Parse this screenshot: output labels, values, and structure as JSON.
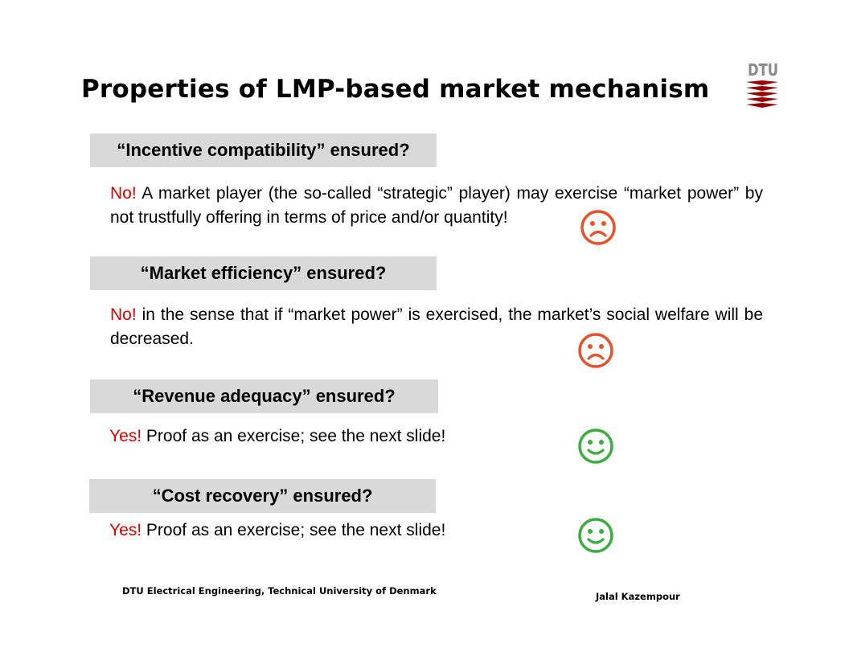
{
  "slide": {
    "title": "Properties of LMP-based market mechanism"
  },
  "logo": {
    "text": "DTU",
    "text_color": "#8a8a8a",
    "mark_color": "#990000"
  },
  "sections": [
    {
      "question": "“Incentive compatibility” ensured?",
      "verdict": "No!",
      "answer": " A market player (the so-called “strategic” player) may exercise “market power” by not trustfully offering in terms of price and/or quantity!",
      "face": "sad-face-icon"
    },
    {
      "question": "“Market efficiency” ensured?",
      "verdict": "No!",
      "answer": " in the sense that if “market power” is exercised, the market’s social welfare will be decreased.",
      "face": "sad-face-icon"
    },
    {
      "question": "“Revenue adequacy” ensured?",
      "verdict": "Yes!",
      "answer": " Proof as an exercise; see the next slide!",
      "face": "happy-face-icon"
    },
    {
      "question": "“Cost recovery” ensured?",
      "verdict": "Yes!",
      "answer": " Proof as an exercise; see the next slide!",
      "face": "happy-face-icon"
    }
  ],
  "colors": {
    "verdict": "#e00000",
    "question_box": "#d9d9d9",
    "sad_face": "#e8522b",
    "happy_face": "#3aae3e"
  },
  "footer": {
    "institution": "DTU Electrical Engineering, Technical University of Denmark",
    "author": "Jalal Kazempour"
  }
}
